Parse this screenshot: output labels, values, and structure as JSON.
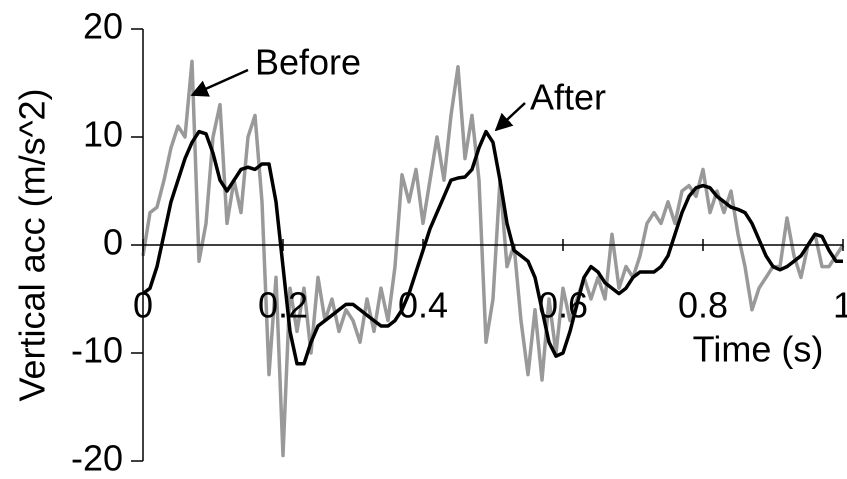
{
  "chart_data": {
    "type": "line",
    "x_label": "Time (s)",
    "y_label": "Vertical acc (m/s^2)",
    "xlim": [
      0,
      1
    ],
    "ylim": [
      -20,
      20
    ],
    "xticks": [
      0,
      0.2,
      0.4,
      0.6,
      0.8,
      1
    ],
    "yticks": [
      -20,
      -10,
      0,
      10,
      20
    ],
    "annotations": [
      {
        "text": "Before"
      },
      {
        "text": "After"
      }
    ],
    "x": [
      0,
      0.01,
      0.02,
      0.03,
      0.04,
      0.05,
      0.06,
      0.07,
      0.08,
      0.09,
      0.1,
      0.11,
      0.12,
      0.13,
      0.14,
      0.15,
      0.16,
      0.17,
      0.18,
      0.19,
      0.2,
      0.21,
      0.22,
      0.23,
      0.24,
      0.25,
      0.26,
      0.27,
      0.28,
      0.29,
      0.3,
      0.31,
      0.32,
      0.33,
      0.34,
      0.35,
      0.36,
      0.37,
      0.38,
      0.39,
      0.4,
      0.41,
      0.42,
      0.43,
      0.44,
      0.45,
      0.46,
      0.47,
      0.48,
      0.49,
      0.5,
      0.51,
      0.52,
      0.53,
      0.54,
      0.55,
      0.56,
      0.57,
      0.58,
      0.59,
      0.6,
      0.61,
      0.62,
      0.63,
      0.64,
      0.65,
      0.66,
      0.67,
      0.68,
      0.69,
      0.7,
      0.71,
      0.72,
      0.73,
      0.74,
      0.75,
      0.76,
      0.77,
      0.78,
      0.79,
      0.8,
      0.81,
      0.82,
      0.83,
      0.84,
      0.85,
      0.86,
      0.87,
      0.88,
      0.89,
      0.9,
      0.91,
      0.92,
      0.93,
      0.94,
      0.95,
      0.96,
      0.97,
      0.98,
      0.99,
      1
    ],
    "series": [
      {
        "name": "Before",
        "color": "#999999",
        "width": 3.5,
        "values": [
          -1,
          3,
          3.5,
          6,
          9,
          11,
          10,
          17,
          -1.5,
          2,
          10,
          13,
          2,
          6,
          3,
          10,
          12,
          4,
          -12,
          -3,
          -19.5,
          -4,
          -8,
          -4,
          -10,
          -3,
          -7,
          -5,
          -8,
          -6,
          -7,
          -9,
          -5,
          -8,
          -4,
          -7,
          -2,
          6.5,
          4,
          7,
          2,
          6,
          10,
          6,
          12,
          16.5,
          8,
          12,
          6,
          -9,
          -5,
          6,
          -2,
          0,
          -7,
          -12,
          -6,
          -12.5,
          -5,
          -10,
          -4,
          -7,
          -5,
          -3,
          -5,
          -3,
          -5,
          1,
          -4,
          -2,
          -3,
          -1,
          2,
          3,
          2,
          4,
          2,
          5,
          5.5,
          4.5,
          7,
          3,
          5,
          3,
          5,
          1,
          -2,
          -6,
          -4,
          -3,
          -2,
          -2,
          2.5,
          -1,
          -3,
          0,
          1,
          -2,
          -2,
          -1,
          0
        ]
      },
      {
        "name": "After",
        "color": "#000000",
        "width": 3.5,
        "values": [
          -4.5,
          -4,
          -2,
          1,
          4,
          6,
          8,
          9.5,
          10.5,
          10.3,
          8.5,
          6,
          5,
          6,
          7,
          7.2,
          7,
          7.5,
          7.5,
          4,
          -2,
          -8,
          -11,
          -11,
          -9,
          -7.5,
          -7,
          -6.5,
          -6,
          -5.5,
          -5.5,
          -6,
          -6.5,
          -7,
          -7.5,
          -7.5,
          -7,
          -6,
          -4.5,
          -2.5,
          -0.5,
          1.5,
          3,
          4.5,
          6,
          6.2,
          6.3,
          7,
          9,
          10.5,
          9.5,
          6,
          2,
          -0.5,
          -1,
          -1.5,
          -3,
          -6,
          -9,
          -10.3,
          -10,
          -8,
          -5.5,
          -3,
          -2,
          -2.5,
          -3.5,
          -4,
          -4.5,
          -4,
          -3,
          -2.5,
          -2.5,
          -2.5,
          -2,
          -1,
          1,
          3,
          4.5,
          5.3,
          5.5,
          5.3,
          4.5,
          4,
          3.5,
          3.3,
          3,
          2,
          0.5,
          -1,
          -2,
          -2.3,
          -2,
          -1.5,
          -1,
          0,
          1,
          0.8,
          -0.5,
          -1.5,
          -1.5
        ]
      }
    ]
  }
}
